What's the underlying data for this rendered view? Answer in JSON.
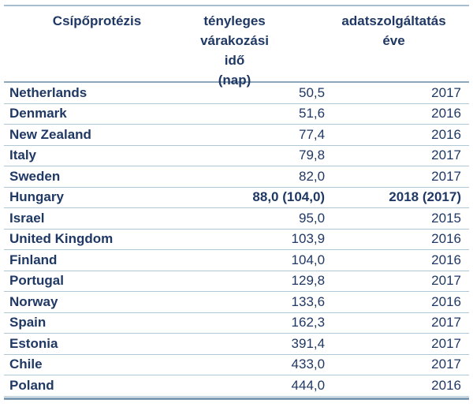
{
  "table": {
    "headers": {
      "col1": "Csípőprotézis",
      "col2_lines": [
        "tényleges",
        "várakozási idő",
        "(nap)"
      ],
      "col3_lines": [
        "adatszolgáltatás",
        "éve"
      ]
    },
    "rows": [
      {
        "country": "Netherlands",
        "value": "50,5",
        "year": "2017",
        "bold": false
      },
      {
        "country": "Denmark",
        "value": "51,6",
        "year": "2016",
        "bold": false
      },
      {
        "country": "New Zealand",
        "value": "77,4",
        "year": "2016",
        "bold": false
      },
      {
        "country": "Italy",
        "value": "79,8",
        "year": "2017",
        "bold": false
      },
      {
        "country": "Sweden",
        "value": "82,0",
        "year": "2017",
        "bold": false
      },
      {
        "country": "Hungary",
        "value": "88,0 (104,0)",
        "year": "2018 (2017)",
        "bold": true
      },
      {
        "country": "Israel",
        "value": "95,0",
        "year": "2015",
        "bold": false
      },
      {
        "country": "United Kingdom",
        "value": "103,9",
        "year": "2016",
        "bold": false
      },
      {
        "country": "Finland",
        "value": "104,0",
        "year": "2016",
        "bold": false
      },
      {
        "country": "Portugal",
        "value": "129,8",
        "year": "2017",
        "bold": false
      },
      {
        "country": "Norway",
        "value": "133,6",
        "year": "2016",
        "bold": false
      },
      {
        "country": "Spain",
        "value": "162,3",
        "year": "2017",
        "bold": false
      },
      {
        "country": "Estonia",
        "value": "391,4",
        "year": "2017",
        "bold": false
      },
      {
        "country": "Chile",
        "value": "433,0",
        "year": "2017",
        "bold": false
      },
      {
        "country": "Poland",
        "value": "444,0",
        "year": "2016",
        "bold": false
      }
    ],
    "colors": {
      "text": "#1f3864",
      "line_top": "#a6becf",
      "line_header_bottom": "#8ba7bb",
      "line_row_separator": "#b0c8d6",
      "line_table_bottom": "#7d9cb3"
    }
  },
  "chart_data": {
    "type": "table",
    "title": "Csípőprotézis – tényleges várakozási idő (nap) / adatszolgáltatás éve",
    "columns": [
      "Csípőprotézis",
      "tényleges várakozási idő (nap)",
      "adatszolgáltatás éve"
    ],
    "rows": [
      [
        "Netherlands",
        "50,5",
        "2017"
      ],
      [
        "Denmark",
        "51,6",
        "2016"
      ],
      [
        "New Zealand",
        "77,4",
        "2016"
      ],
      [
        "Italy",
        "79,8",
        "2017"
      ],
      [
        "Sweden",
        "82,0",
        "2017"
      ],
      [
        "Hungary",
        "88,0 (104,0)",
        "2018 (2017)"
      ],
      [
        "Israel",
        "95,0",
        "2015"
      ],
      [
        "United Kingdom",
        "103,9",
        "2016"
      ],
      [
        "Finland",
        "104,0",
        "2016"
      ],
      [
        "Portugal",
        "129,8",
        "2017"
      ],
      [
        "Norway",
        "133,6",
        "2016"
      ],
      [
        "Spain",
        "162,3",
        "2017"
      ],
      [
        "Estonia",
        "391,4",
        "2017"
      ],
      [
        "Chile",
        "433,0",
        "2017"
      ],
      [
        "Poland",
        "444,0",
        "2016"
      ]
    ]
  }
}
